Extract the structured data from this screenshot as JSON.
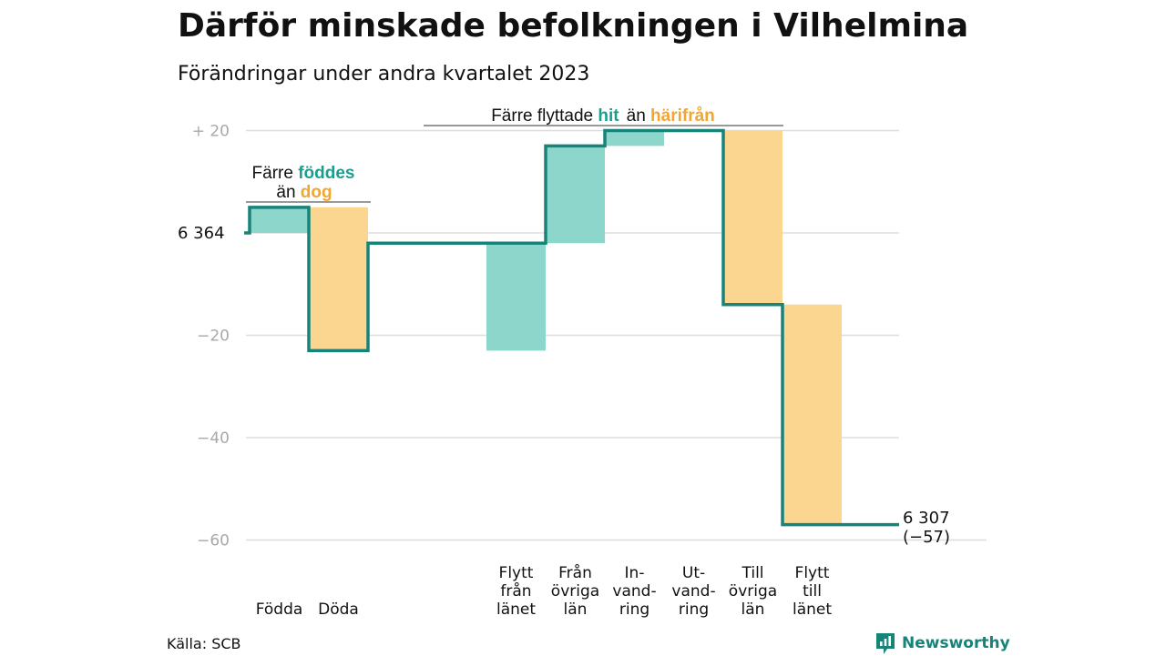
{
  "title": "Därför minskade befolkningen i Vilhelmina",
  "subtitle": "Förändringar under andra kvartalet 2023",
  "source": "Källa: SCB",
  "brand": "Newsworthy",
  "colors": {
    "increase": "#8dd6cc",
    "decrease": "#fbd690",
    "step_line": "#17847a",
    "increase_text": "#1c9e8e",
    "decrease_text": "#f2a630",
    "grid": "#dddddd",
    "tick_text": "#a9a9a9",
    "brand_icon": "#17847a"
  },
  "annotations": {
    "natural": {
      "line1_a": "Färre ",
      "line1_b": "föddes",
      "line2_a": "än ",
      "line2_b": "dog"
    },
    "migration": {
      "a": "Färre flyttade ",
      "b": "hit",
      "c": "än ",
      "d": "härifrån"
    }
  },
  "chart_data": {
    "type": "waterfall",
    "start": {
      "value": 6364,
      "label": "6  364"
    },
    "end": {
      "value": 6307,
      "change": -57,
      "label_line1": "6 307",
      "label_line2": "(−57)"
    },
    "y_axis": {
      "ticks": [
        {
          "value": 20,
          "label": "+  20"
        },
        {
          "value": -20,
          "label": "−20"
        },
        {
          "value": -40,
          "label": "−40"
        },
        {
          "value": -60,
          "label": "−60"
        }
      ],
      "range": [
        -60,
        20
      ],
      "grid": true
    },
    "steps": [
      {
        "label_lines": [
          "Födda"
        ],
        "value": 5,
        "direction": "increase"
      },
      {
        "label_lines": [
          "Döda"
        ],
        "value": -28,
        "direction": "decrease"
      },
      {
        "label_lines": [
          "Flytt",
          "från",
          "länet"
        ],
        "value": 21,
        "direction": "increase"
      },
      {
        "label_lines": [
          "Från",
          "övriga",
          "län"
        ],
        "value": 19,
        "direction": "increase"
      },
      {
        "label_lines": [
          "In-",
          "vand-",
          "ring"
        ],
        "value": 3,
        "direction": "increase"
      },
      {
        "label_lines": [
          "Ut-",
          "vand-",
          "ring"
        ],
        "value": 0,
        "direction": "decrease"
      },
      {
        "label_lines": [
          "Till",
          "övriga",
          "län"
        ],
        "value": -34,
        "direction": "decrease"
      },
      {
        "label_lines": [
          "Flytt",
          "till",
          "länet"
        ],
        "value": -43,
        "direction": "decrease"
      }
    ]
  }
}
